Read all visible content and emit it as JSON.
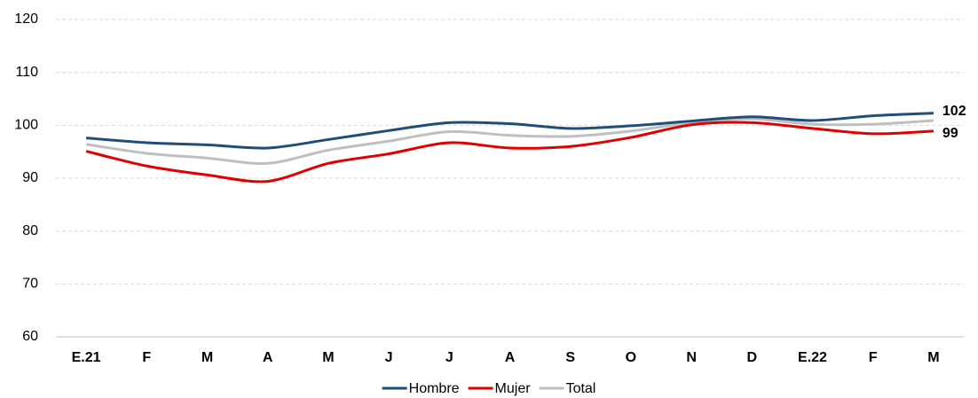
{
  "chart_data": {
    "type": "line",
    "categories": [
      "E.21",
      "F",
      "M",
      "A",
      "M",
      "J",
      "J",
      "A",
      "S",
      "O",
      "N",
      "D",
      "E.22",
      "F",
      "M"
    ],
    "series": [
      {
        "name": "Hombre",
        "color": "#1f4e79",
        "values": [
          97.6,
          96.7,
          96.3,
          95.7,
          97.3,
          99.0,
          100.5,
          100.3,
          99.4,
          99.9,
          100.8,
          101.6,
          100.9,
          101.8,
          102.3
        ],
        "value_labels": [
          null,
          null,
          null,
          null,
          null,
          null,
          null,
          null,
          null,
          null,
          null,
          null,
          null,
          null,
          "102"
        ]
      },
      {
        "name": "Mujer",
        "color": "#e00000",
        "values": [
          95.1,
          92.3,
          90.6,
          89.4,
          92.8,
          94.6,
          96.7,
          95.7,
          96.0,
          97.7,
          100.1,
          100.5,
          99.4,
          98.4,
          98.9
        ],
        "value_labels": [
          null,
          null,
          null,
          null,
          null,
          null,
          null,
          null,
          null,
          null,
          null,
          null,
          null,
          null,
          "99"
        ]
      },
      {
        "name": "Total",
        "color": "#bfbfbf",
        "values": [
          96.4,
          94.7,
          93.8,
          92.8,
          95.3,
          97.0,
          98.8,
          98.1,
          97.9,
          98.9,
          100.5,
          101.2,
          100.2,
          100.2,
          100.9
        ]
      }
    ],
    "ylim": [
      60,
      120
    ],
    "yticks": [
      60,
      70,
      80,
      90,
      100,
      110,
      120
    ],
    "grid": true,
    "legend": "bottom"
  }
}
